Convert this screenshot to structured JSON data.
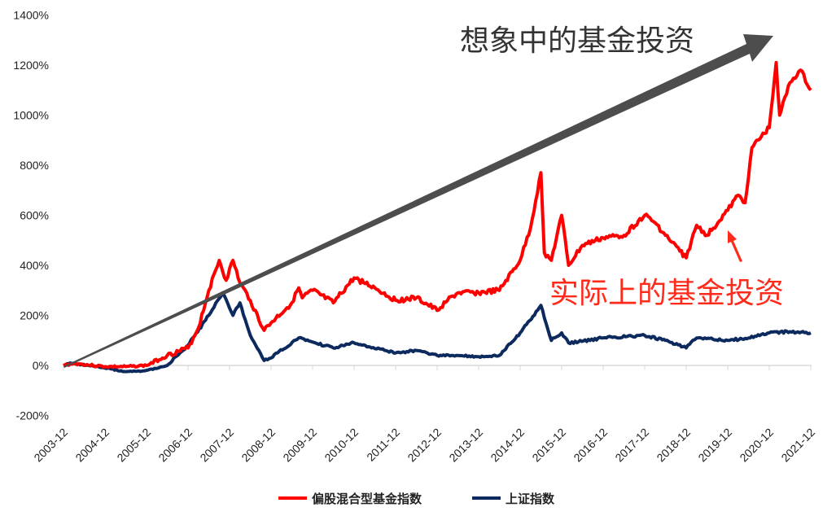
{
  "chart_data": {
    "type": "line",
    "title": "",
    "xlabel": "",
    "ylabel": "",
    "ylim": [
      -200,
      1400
    ],
    "yticks": [
      "-200%",
      "0%",
      "200%",
      "400%",
      "600%",
      "800%",
      "1000%",
      "1200%",
      "1400%"
    ],
    "xticks": [
      "2003-12",
      "2004-12",
      "2005-12",
      "2006-12",
      "2007-12",
      "2008-12",
      "2009-12",
      "2010-12",
      "2011-12",
      "2012-12",
      "2013-12",
      "2014-12",
      "2015-12",
      "2016-12",
      "2017-12",
      "2018-12",
      "2019-12",
      "2020-12",
      "2021-12"
    ],
    "grid": false,
    "legend": "bottom",
    "series": [
      {
        "name": "偏股混合型基金指数",
        "color": "#ff0000",
        "points": [
          [
            "2003-12",
            0
          ],
          [
            "2004-03",
            8
          ],
          [
            "2004-12",
            -5
          ],
          [
            "2005-06",
            -5
          ],
          [
            "2005-12",
            0
          ],
          [
            "2006-06",
            40
          ],
          [
            "2006-12",
            70
          ],
          [
            "2007-03",
            150
          ],
          [
            "2007-06",
            300
          ],
          [
            "2007-09",
            420
          ],
          [
            "2007-11",
            340
          ],
          [
            "2008-01",
            420
          ],
          [
            "2008-03",
            330
          ],
          [
            "2008-06",
            260
          ],
          [
            "2008-10",
            140
          ],
          [
            "2008-12",
            170
          ],
          [
            "2009-06",
            250
          ],
          [
            "2009-08",
            310
          ],
          [
            "2009-09",
            270
          ],
          [
            "2009-12",
            300
          ],
          [
            "2010-06",
            250
          ],
          [
            "2010-12",
            350
          ],
          [
            "2011-06",
            310
          ],
          [
            "2011-12",
            260
          ],
          [
            "2012-06",
            270
          ],
          [
            "2012-12",
            220
          ],
          [
            "2013-03",
            260
          ],
          [
            "2013-06",
            290
          ],
          [
            "2013-12",
            290
          ],
          [
            "2014-06",
            300
          ],
          [
            "2014-12",
            420
          ],
          [
            "2015-03",
            550
          ],
          [
            "2015-06",
            770
          ],
          [
            "2015-07",
            450
          ],
          [
            "2015-09",
            420
          ],
          [
            "2015-12",
            600
          ],
          [
            "2016-02",
            400
          ],
          [
            "2016-06",
            480
          ],
          [
            "2016-12",
            510
          ],
          [
            "2017-06",
            520
          ],
          [
            "2017-12",
            600
          ],
          [
            "2018-03",
            570
          ],
          [
            "2018-06",
            520
          ],
          [
            "2018-12",
            430
          ],
          [
            "2019-03",
            560
          ],
          [
            "2019-06",
            520
          ],
          [
            "2019-12",
            620
          ],
          [
            "2020-03",
            680
          ],
          [
            "2020-05",
            650
          ],
          [
            "2020-07",
            870
          ],
          [
            "2020-12",
            950
          ],
          [
            "2021-02",
            1210
          ],
          [
            "2021-03",
            1000
          ],
          [
            "2021-06",
            1130
          ],
          [
            "2021-09",
            1180
          ],
          [
            "2021-12",
            1100
          ]
        ]
      },
      {
        "name": "上证指数",
        "color": "#0d2a5e",
        "points": [
          [
            "2003-12",
            0
          ],
          [
            "2004-02",
            10
          ],
          [
            "2004-12",
            -10
          ],
          [
            "2005-06",
            -25
          ],
          [
            "2005-12",
            -20
          ],
          [
            "2006-06",
            0
          ],
          [
            "2006-12",
            80
          ],
          [
            "2007-06",
            200
          ],
          [
            "2007-10",
            290
          ],
          [
            "2008-01",
            200
          ],
          [
            "2008-03",
            250
          ],
          [
            "2008-06",
            120
          ],
          [
            "2008-10",
            20
          ],
          [
            "2008-12",
            30
          ],
          [
            "2009-08",
            110
          ],
          [
            "2009-10",
            100
          ],
          [
            "2010-06",
            70
          ],
          [
            "2010-12",
            90
          ],
          [
            "2011-12",
            50
          ],
          [
            "2012-06",
            60
          ],
          [
            "2012-12",
            40
          ],
          [
            "2013-06",
            40
          ],
          [
            "2013-12",
            35
          ],
          [
            "2014-06",
            40
          ],
          [
            "2014-12",
            130
          ],
          [
            "2015-06",
            240
          ],
          [
            "2015-09",
            100
          ],
          [
            "2015-12",
            130
          ],
          [
            "2016-02",
            90
          ],
          [
            "2016-12",
            110
          ],
          [
            "2017-12",
            120
          ],
          [
            "2018-06",
            100
          ],
          [
            "2018-12",
            70
          ],
          [
            "2019-03",
            110
          ],
          [
            "2019-12",
            100
          ],
          [
            "2020-06",
            110
          ],
          [
            "2020-12",
            130
          ],
          [
            "2021-06",
            135
          ],
          [
            "2021-12",
            130
          ]
        ]
      }
    ],
    "annotations": {
      "imagined": "想象中的基金投资",
      "actual": "实际上的基金投资"
    },
    "annotation_colors": {
      "imagined": "#4d4d4d",
      "actual": "#ff2a1a"
    }
  }
}
